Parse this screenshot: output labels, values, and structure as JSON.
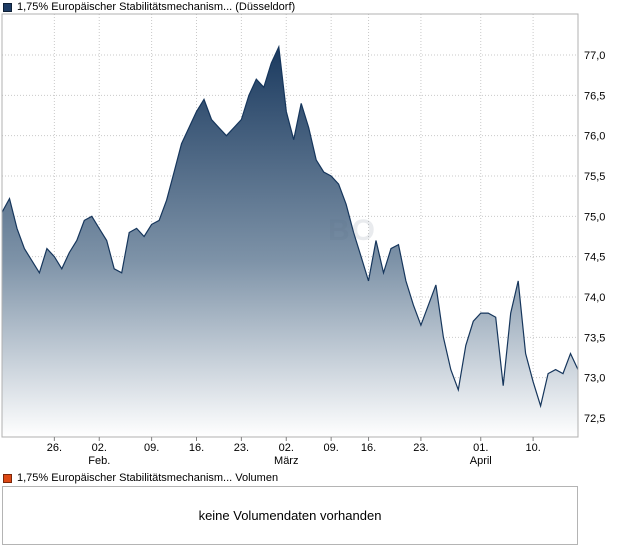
{
  "header": {
    "title": "1,75% Europäischer Stabilitätsmechanism... (Düsseldorf)",
    "marker_color": "#1e3c64"
  },
  "volume": {
    "title": "1,75% Europäischer Stabilitätsmechanism... Volumen",
    "marker_color": "#dd4814",
    "message": "keine Volumendaten vorhanden"
  },
  "watermark": {
    "text": "BO"
  },
  "chart_data": {
    "type": "area",
    "title": "1,75% Europäischer Stabilitätsmechanism... (Düsseldorf)",
    "xlabel": "",
    "ylabel": "",
    "ylim": [
      72.5,
      77.0
    ],
    "grid": true,
    "legend": "none",
    "line_color": "#16365c",
    "fill_top": "#1b3a5f",
    "fill_mid": "#7e93a8",
    "fill_bottom": "#ffffff",
    "y_ticks": [
      77.0,
      76.5,
      76.0,
      75.5,
      75.0,
      74.5,
      74.0,
      73.5,
      73.0,
      72.5
    ],
    "x_ticks": [
      {
        "label": "26.",
        "i": 7
      },
      {
        "label": "02.",
        "i": 13
      },
      {
        "label": "09.",
        "i": 20
      },
      {
        "label": "16.",
        "i": 26
      },
      {
        "label": "23.",
        "i": 32
      },
      {
        "label": "02.",
        "i": 38
      },
      {
        "label": "09.",
        "i": 44
      },
      {
        "label": "16.",
        "i": 49
      },
      {
        "label": "23.",
        "i": 56
      },
      {
        "label": "01.",
        "i": 64
      },
      {
        "label": "10.",
        "i": 71
      }
    ],
    "month_labels": [
      {
        "label": "Feb.",
        "i": 13
      },
      {
        "label": "März",
        "i": 38
      },
      {
        "label": "April",
        "i": 64
      }
    ],
    "values": [
      75.05,
      75.22,
      74.85,
      74.6,
      74.45,
      74.3,
      74.6,
      74.5,
      74.35,
      74.55,
      74.7,
      74.95,
      75.0,
      74.85,
      74.7,
      74.35,
      74.3,
      74.8,
      74.85,
      74.75,
      74.9,
      74.95,
      75.2,
      75.55,
      75.9,
      76.1,
      76.3,
      76.45,
      76.2,
      76.1,
      76.0,
      76.1,
      76.2,
      76.5,
      76.7,
      76.6,
      76.9,
      77.1,
      76.3,
      75.95,
      76.4,
      76.1,
      75.7,
      75.55,
      75.5,
      75.4,
      75.15,
      74.8,
      74.5,
      74.2,
      74.7,
      74.3,
      74.6,
      74.65,
      74.2,
      73.9,
      73.65,
      73.9,
      74.15,
      73.5,
      73.1,
      72.85,
      73.4,
      73.7,
      73.8,
      73.8,
      73.75,
      72.9,
      73.8,
      74.2,
      73.3,
      72.95,
      72.65,
      73.05,
      73.1,
      73.05,
      73.3,
      73.1
    ]
  }
}
